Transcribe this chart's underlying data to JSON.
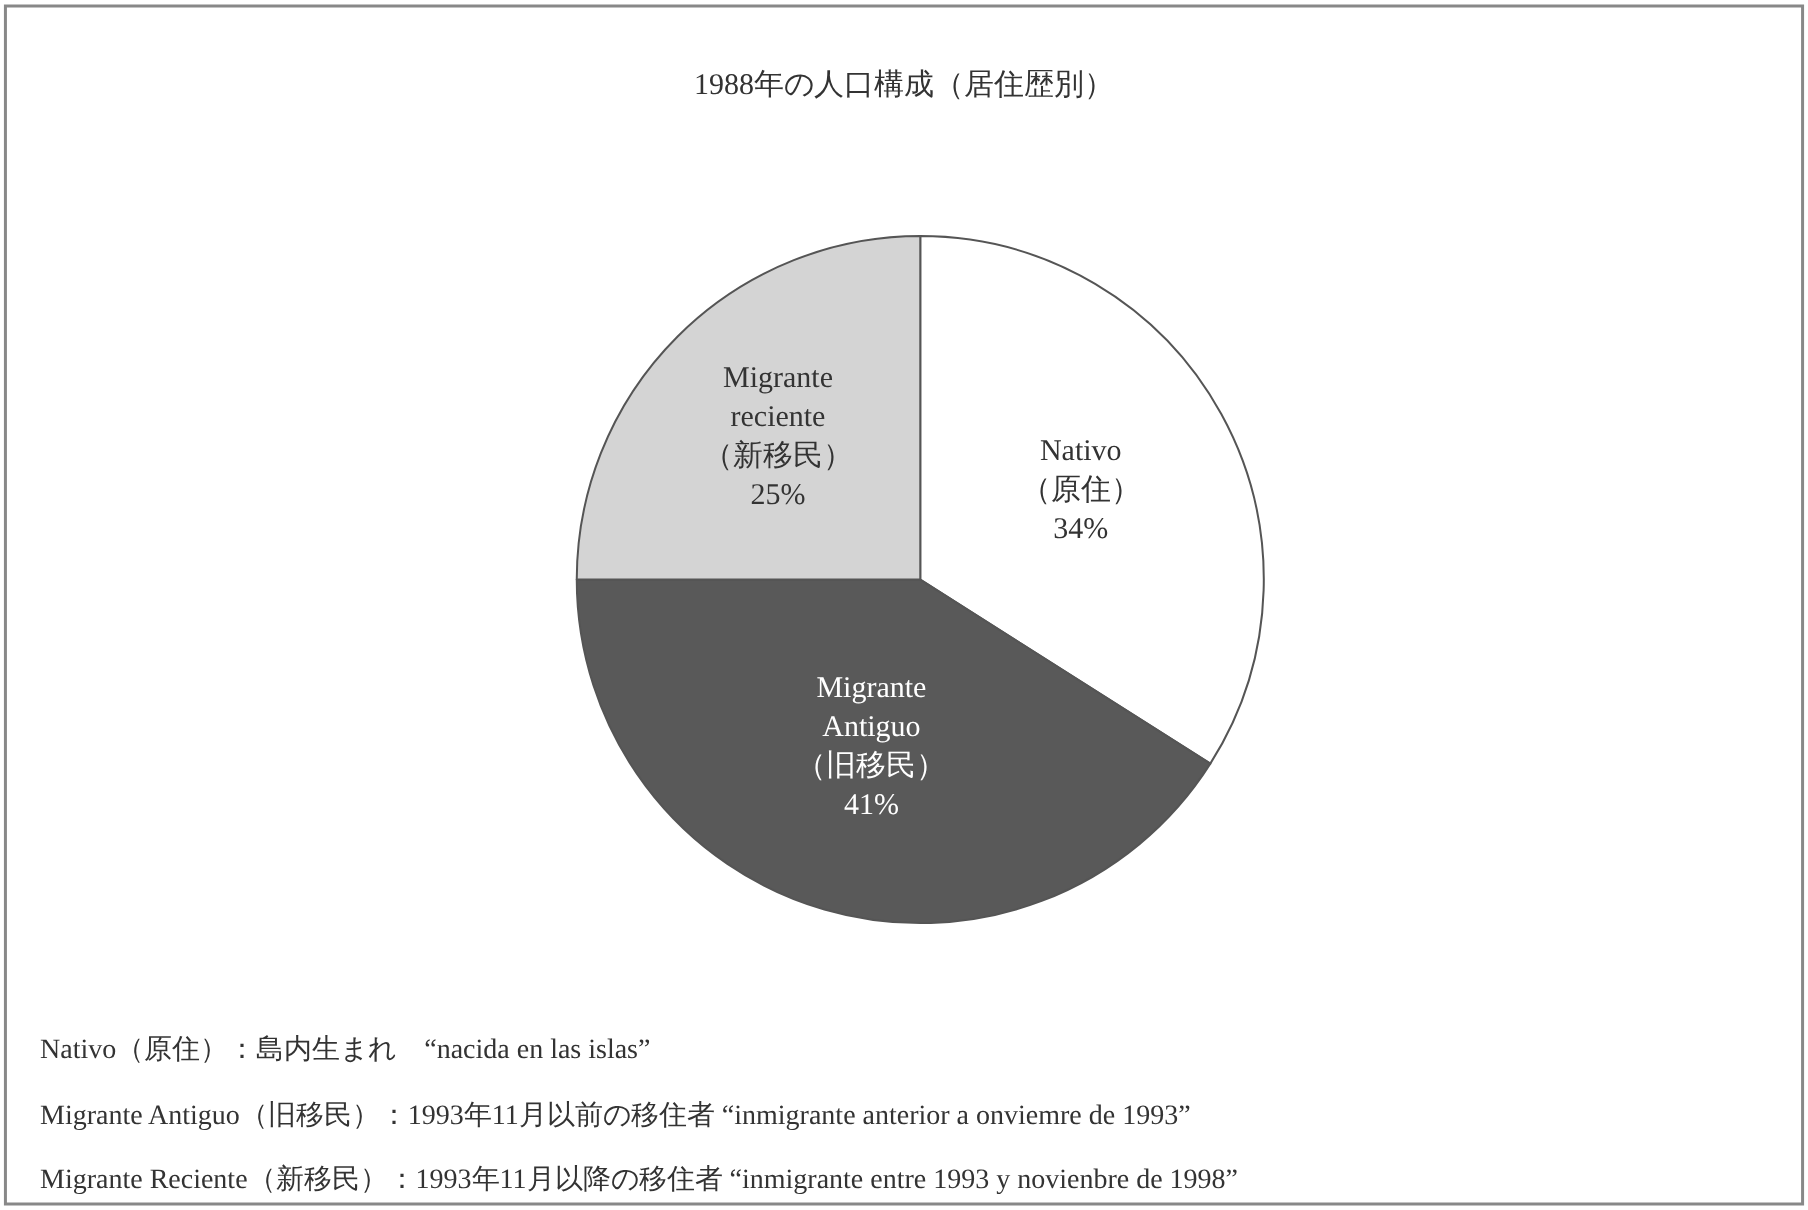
{
  "chart_data": {
    "type": "pie",
    "title": "1988年の人口構成（居住歴別）",
    "categories": [
      "Nativo\n（原住）",
      "Migrante\nAntiguo\n（旧移民）",
      "Migrante\nreciente\n（新移民）"
    ],
    "values": [
      34,
      41,
      25
    ],
    "value_labels": [
      "34%",
      "41%",
      "25%"
    ],
    "colors": [
      "#ffffff",
      "#595959",
      "#d4d4d4"
    ],
    "legend": false,
    "annotations": [
      "Nativo（原住）：島内生まれ　“nacida en las islas”",
      "Migrante Antiguo（旧移民）：1993年11月以前の移住者 “inmigrante anterior a onviemre de 1993”",
      "Migrante Reciente（新移民）：1993年11月以降の移住者 “inmigrante entre 1993 y novienbre de 1998”"
    ]
  }
}
